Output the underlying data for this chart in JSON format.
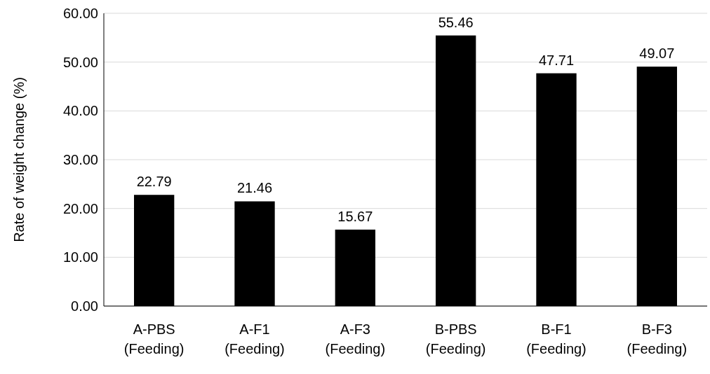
{
  "chart_data": {
    "type": "bar",
    "ylabel": "Rate of weight change (%)",
    "categories": [
      "A-PBS (Feeding)",
      "A-F1 (Feeding)",
      "A-F3 (Feeding)",
      "B-PBS (Feeding)",
      "B-F1 (Feeding)",
      "B-F3 (Feeding)"
    ],
    "values": [
      22.79,
      21.46,
      15.67,
      55.46,
      47.71,
      49.07
    ],
    "value_labels": [
      "22.79",
      "21.46",
      "15.67",
      "55.46",
      "47.71",
      "49.07"
    ],
    "color": "#000000",
    "ylim": [
      0,
      60
    ],
    "yticks": [
      {
        "value": 0,
        "label": "0.00"
      },
      {
        "value": 10,
        "label": "10.00"
      },
      {
        "value": 20,
        "label": "20.00"
      },
      {
        "value": 30,
        "label": "30.00"
      },
      {
        "value": 40,
        "label": "40.00"
      },
      {
        "value": 50,
        "label": "50.00"
      },
      {
        "value": 60,
        "label": "60.00"
      }
    ],
    "grid": "y"
  }
}
